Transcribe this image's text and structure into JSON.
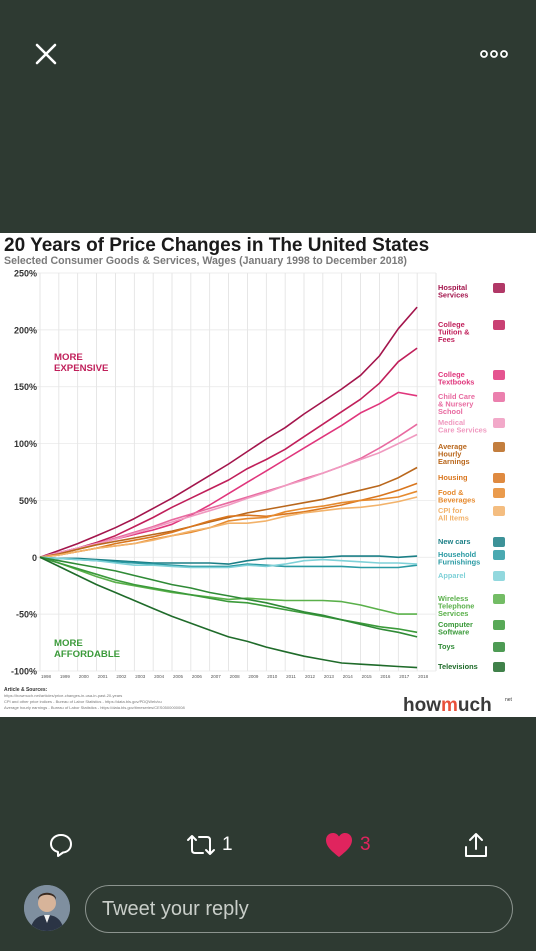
{
  "post": {
    "reply_count": "",
    "retweet_count": "1",
    "like_count": "3",
    "reply_placeholder": "Tweet your reply"
  },
  "colors": {
    "background": "#2e3a32",
    "like": "#e0245e",
    "icon": "#ffffff"
  },
  "icons": {
    "close": "close-icon",
    "more": "more-icon",
    "reply": "reply-icon",
    "retweet": "retweet-icon",
    "like": "heart-icon",
    "share": "share-icon"
  },
  "chart_image": {
    "title": "20 Years of Price Changes in The United States",
    "subtitle": "Selected Consumer Goods & Services, Wages (January 1998 to December 2018)",
    "annotation_more": "MORE EXPENSIVE",
    "annotation_less": "MORE AFFORDABLE",
    "sources_heading": "Article & Sources:",
    "sources_lines": [
      "https://howmuch.net/articles/price-changes-in-usa-in-past-20-years",
      "CPI and other price indices - Bureau of Labor Statistics - https://data.bls.gov/PDQWeb/cu",
      "Average hourly earnings - Bureau of Labor Statistics - https://data.bls.gov/timeseries/CES0500000008"
    ],
    "brand": "howmuch",
    "brand_suffix": "net"
  },
  "chart_data": {
    "type": "line",
    "title": "20 Years of Price Changes in The United States",
    "subtitle": "Selected Consumer Goods & Services, Wages (January 1998 to December 2018)",
    "x": [
      1998,
      1999,
      2000,
      2001,
      2002,
      2003,
      2004,
      2005,
      2006,
      2007,
      2008,
      2009,
      2010,
      2011,
      2012,
      2013,
      2014,
      2015,
      2016,
      2017,
      2018
    ],
    "y_ticks": [
      "250%",
      "200%",
      "150%",
      "100%",
      "50%",
      "0",
      "-50%",
      "-100%"
    ],
    "ylim": [
      -100,
      250
    ],
    "grid": true,
    "series": [
      {
        "name": "Hospital Services",
        "color": "#a3154c",
        "values": [
          0,
          6,
          12,
          19,
          26,
          34,
          43,
          52,
          62,
          72,
          82,
          93,
          104,
          114,
          126,
          137,
          148,
          160,
          177,
          201,
          220
        ]
      },
      {
        "name": "College Tuition & Fees",
        "color": "#c01f5a",
        "values": [
          0,
          4,
          8,
          13,
          19,
          27,
          35,
          44,
          52,
          60,
          68,
          78,
          86,
          95,
          106,
          117,
          128,
          139,
          153,
          172,
          184
        ]
      },
      {
        "name": "College Textbooks",
        "color": "#e0367c",
        "values": [
          0,
          4,
          8,
          12,
          16,
          20,
          24,
          29,
          37,
          46,
          56,
          66,
          76,
          86,
          96,
          106,
          116,
          127,
          135,
          145,
          142
        ]
      },
      {
        "name": "Child Care & Nursery School",
        "color": "#e86aa0",
        "values": [
          0,
          4,
          8,
          12,
          17,
          22,
          27,
          33,
          38,
          43,
          48,
          53,
          58,
          63,
          69,
          74,
          80,
          87,
          96,
          106,
          117
        ]
      },
      {
        "name": "Medical Care Services",
        "color": "#f09ac0",
        "values": [
          0,
          4,
          8,
          12,
          16,
          21,
          26,
          31,
          36,
          41,
          46,
          52,
          57,
          63,
          68,
          74,
          80,
          86,
          92,
          100,
          108
        ]
      },
      {
        "name": "Average Hourly Earnings",
        "color": "#b9671c",
        "values": [
          0,
          3,
          7,
          11,
          14,
          17,
          20,
          23,
          27,
          31,
          35,
          39,
          42,
          45,
          48,
          51,
          55,
          59,
          63,
          70,
          79
        ]
      },
      {
        "name": "Housing",
        "color": "#d9761e",
        "values": [
          0,
          2,
          5,
          8,
          12,
          15,
          18,
          22,
          27,
          32,
          36,
          37,
          36,
          38,
          40,
          43,
          46,
          50,
          54,
          59,
          65
        ]
      },
      {
        "name": "Food & Beverages",
        "color": "#e68a2e",
        "values": [
          0,
          2,
          5,
          8,
          10,
          12,
          16,
          19,
          22,
          26,
          32,
          34,
          35,
          40,
          43,
          45,
          48,
          50,
          51,
          53,
          58
        ]
      },
      {
        "name": "CPI for All Items",
        "color": "#f2b26a",
        "values": [
          0,
          2,
          5,
          8,
          10,
          12,
          15,
          19,
          23,
          26,
          30,
          30,
          32,
          36,
          39,
          41,
          43,
          44,
          46,
          49,
          53
        ]
      },
      {
        "name": "New cars",
        "color": "#1b7f86",
        "values": [
          0,
          -1,
          -1,
          -2,
          -3,
          -4,
          -5,
          -5,
          -5,
          -5,
          -6,
          -3,
          -1,
          -1,
          0,
          0,
          1,
          1,
          1,
          0,
          1
        ]
      },
      {
        "name": "Household Furnishings",
        "color": "#2a9aa3",
        "values": [
          0,
          -1,
          -2,
          -3,
          -4,
          -5,
          -6,
          -7,
          -8,
          -8,
          -8,
          -6,
          -7,
          -8,
          -8,
          -8,
          -8,
          -9,
          -9,
          -9,
          -7
        ]
      },
      {
        "name": "Apparel",
        "color": "#7fd1d8",
        "values": [
          0,
          -1,
          -2,
          -3,
          -5,
          -7,
          -7,
          -8,
          -9,
          -9,
          -9,
          -7,
          -8,
          -6,
          -3,
          -2,
          -3,
          -4,
          -5,
          -5,
          -6
        ]
      },
      {
        "name": "Wireless Telephone Services",
        "color": "#5ab04a",
        "values": [
          0,
          -5,
          -11,
          -17,
          -22,
          -25,
          -28,
          -31,
          -33,
          -35,
          -37,
          -36,
          -37,
          -38,
          -38,
          -38,
          -39,
          -42,
          -46,
          -50,
          -50
        ]
      },
      {
        "name": "Computer Software",
        "color": "#3b9a3a",
        "values": [
          0,
          -5,
          -10,
          -15,
          -20,
          -24,
          -27,
          -30,
          -33,
          -36,
          -39,
          -40,
          -43,
          -46,
          -49,
          -52,
          -55,
          -58,
          -61,
          -63,
          -66
        ]
      },
      {
        "name": "Toys",
        "color": "#2f8a36",
        "values": [
          0,
          -3,
          -6,
          -9,
          -12,
          -16,
          -20,
          -24,
          -27,
          -31,
          -34,
          -37,
          -40,
          -44,
          -48,
          -51,
          -55,
          -59,
          -63,
          -66,
          -70
        ]
      },
      {
        "name": "Televisions",
        "color": "#1f6b2a",
        "values": [
          0,
          -8,
          -16,
          -24,
          -31,
          -38,
          -45,
          -52,
          -58,
          -64,
          -70,
          -74,
          -79,
          -83,
          -87,
          -90,
          -93,
          -94,
          -95,
          -96,
          -97
        ]
      }
    ],
    "series_label_lines": [
      [
        "Hospital",
        "Services"
      ],
      [
        "College",
        "Tuition &",
        "Fees"
      ],
      [
        "College",
        "Textbooks"
      ],
      [
        "Child Care",
        "& Nursery",
        "School"
      ],
      [
        "Medical",
        "Care Services"
      ],
      [
        "Average",
        "Hourly",
        "Earnings"
      ],
      [
        "Housing"
      ],
      [
        "Food &",
        "Beverages"
      ],
      [
        "CPI for",
        "All Items"
      ],
      [
        "New cars"
      ],
      [
        "Household",
        "Furnishings"
      ],
      [
        "Apparel"
      ],
      [
        "Wireless",
        "Telephone",
        "Services"
      ],
      [
        "Computer",
        "Software"
      ],
      [
        "Toys"
      ],
      [
        "Televisions"
      ]
    ]
  }
}
